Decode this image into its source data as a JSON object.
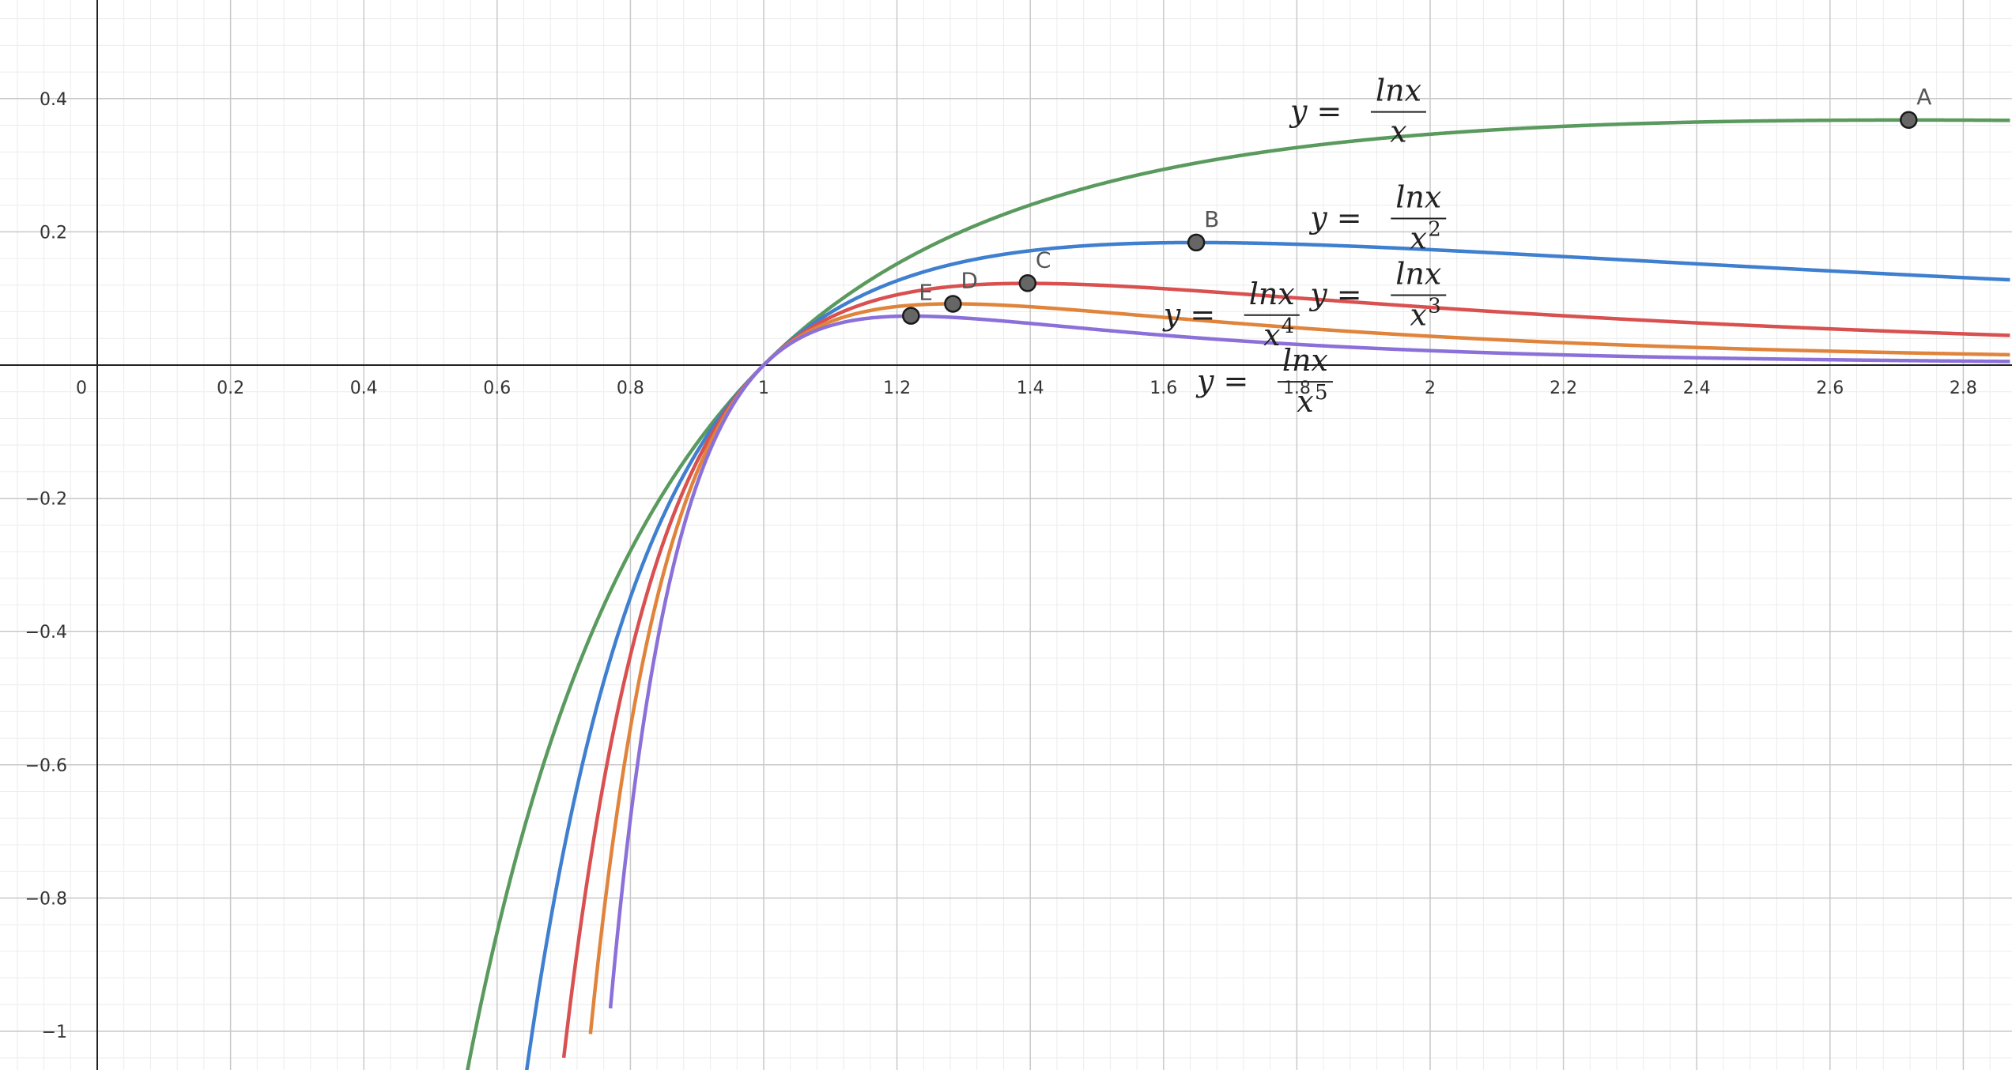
{
  "chart_data": {
    "type": "line",
    "title": "",
    "xlabel": "",
    "ylabel": "",
    "xlim": [
      -0.15,
      2.87
    ],
    "ylim": [
      -1.06,
      0.55
    ],
    "grid": true,
    "x_ticks": [
      0.2,
      0.4,
      0.6,
      0.8,
      1,
      1.2,
      1.4,
      1.6,
      1.8,
      2,
      2.2,
      2.4,
      2.6,
      2.8
    ],
    "x_tick_labels": [
      "0.2",
      "0.4",
      "0.6",
      "0.8",
      "1",
      "1.2",
      "1.4",
      "1.6",
      "1.8",
      "2",
      "2.2",
      "2.4",
      "2.6",
      "2.8"
    ],
    "y_ticks": [
      0.4,
      0.2,
      -0.2,
      -0.4,
      -0.6,
      -0.8,
      -1
    ],
    "y_tick_labels": [
      "0.4",
      "0.2",
      "−0.2",
      "−0.4",
      "−0.6",
      "−0.8",
      "−1"
    ],
    "origin_label": "0",
    "series": [
      {
        "power": 1,
        "color": "#5a9a5e",
        "x_start": 0.55,
        "eq_x": 1.79,
        "eq_y": 0.38
      },
      {
        "power": 2,
        "color": "#3f7fcf",
        "x_start": 0.64,
        "eq_x": 1.82,
        "eq_y": 0.22
      },
      {
        "power": 3,
        "color": "#d95050",
        "x_start": 0.7,
        "eq_x": 1.82,
        "eq_y": 0.105
      },
      {
        "power": 4,
        "color": "#e0843c",
        "x_start": 0.74,
        "eq_x": 1.6,
        "eq_y": 0.075
      },
      {
        "power": 5,
        "color": "#8a70d8",
        "x_start": 0.77,
        "eq_x": 1.65,
        "eq_y": -0.025
      }
    ],
    "equation_text": {
      "lhs": "y =",
      "numerator": "lnx",
      "denominator_base": "x"
    },
    "points": [
      {
        "label": "A",
        "x": 2.718,
        "y": 0.368
      },
      {
        "label": "B",
        "x": 1.649,
        "y": 0.184
      },
      {
        "label": "C",
        "x": 1.396,
        "y": 0.123
      },
      {
        "label": "D",
        "x": 1.284,
        "y": 0.092
      },
      {
        "label": "E",
        "x": 1.221,
        "y": 0.074
      }
    ]
  }
}
